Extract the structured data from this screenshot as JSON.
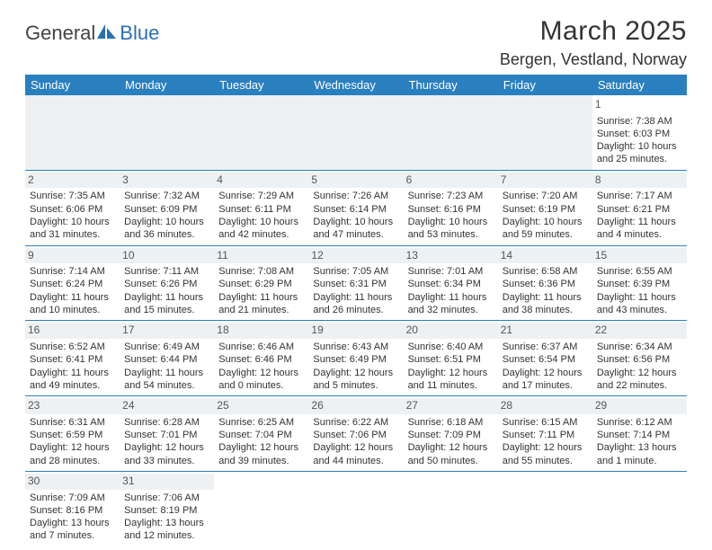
{
  "logo": {
    "part1": "General",
    "part2": "Blue"
  },
  "title": "March 2025",
  "location": "Bergen, Vestland, Norway",
  "dayHeaders": [
    "Sunday",
    "Monday",
    "Tuesday",
    "Wednesday",
    "Thursday",
    "Friday",
    "Saturday"
  ],
  "colors": {
    "headerBg": "#2a7fbf",
    "headerText": "#ffffff",
    "dayStripe": "#eef1f3",
    "border": "#2a7fbf",
    "logoBlue": "#2a6fb5",
    "text": "#333333"
  },
  "weeks": [
    [
      null,
      null,
      null,
      null,
      null,
      null,
      {
        "d": "1",
        "sr": "Sunrise: 7:38 AM",
        "ss": "Sunset: 6:03 PM",
        "dl": "Daylight: 10 hours and 25 minutes."
      }
    ],
    [
      {
        "d": "2",
        "sr": "Sunrise: 7:35 AM",
        "ss": "Sunset: 6:06 PM",
        "dl": "Daylight: 10 hours and 31 minutes."
      },
      {
        "d": "3",
        "sr": "Sunrise: 7:32 AM",
        "ss": "Sunset: 6:09 PM",
        "dl": "Daylight: 10 hours and 36 minutes."
      },
      {
        "d": "4",
        "sr": "Sunrise: 7:29 AM",
        "ss": "Sunset: 6:11 PM",
        "dl": "Daylight: 10 hours and 42 minutes."
      },
      {
        "d": "5",
        "sr": "Sunrise: 7:26 AM",
        "ss": "Sunset: 6:14 PM",
        "dl": "Daylight: 10 hours and 47 minutes."
      },
      {
        "d": "6",
        "sr": "Sunrise: 7:23 AM",
        "ss": "Sunset: 6:16 PM",
        "dl": "Daylight: 10 hours and 53 minutes."
      },
      {
        "d": "7",
        "sr": "Sunrise: 7:20 AM",
        "ss": "Sunset: 6:19 PM",
        "dl": "Daylight: 10 hours and 59 minutes."
      },
      {
        "d": "8",
        "sr": "Sunrise: 7:17 AM",
        "ss": "Sunset: 6:21 PM",
        "dl": "Daylight: 11 hours and 4 minutes."
      }
    ],
    [
      {
        "d": "9",
        "sr": "Sunrise: 7:14 AM",
        "ss": "Sunset: 6:24 PM",
        "dl": "Daylight: 11 hours and 10 minutes."
      },
      {
        "d": "10",
        "sr": "Sunrise: 7:11 AM",
        "ss": "Sunset: 6:26 PM",
        "dl": "Daylight: 11 hours and 15 minutes."
      },
      {
        "d": "11",
        "sr": "Sunrise: 7:08 AM",
        "ss": "Sunset: 6:29 PM",
        "dl": "Daylight: 11 hours and 21 minutes."
      },
      {
        "d": "12",
        "sr": "Sunrise: 7:05 AM",
        "ss": "Sunset: 6:31 PM",
        "dl": "Daylight: 11 hours and 26 minutes."
      },
      {
        "d": "13",
        "sr": "Sunrise: 7:01 AM",
        "ss": "Sunset: 6:34 PM",
        "dl": "Daylight: 11 hours and 32 minutes."
      },
      {
        "d": "14",
        "sr": "Sunrise: 6:58 AM",
        "ss": "Sunset: 6:36 PM",
        "dl": "Daylight: 11 hours and 38 minutes."
      },
      {
        "d": "15",
        "sr": "Sunrise: 6:55 AM",
        "ss": "Sunset: 6:39 PM",
        "dl": "Daylight: 11 hours and 43 minutes."
      }
    ],
    [
      {
        "d": "16",
        "sr": "Sunrise: 6:52 AM",
        "ss": "Sunset: 6:41 PM",
        "dl": "Daylight: 11 hours and 49 minutes."
      },
      {
        "d": "17",
        "sr": "Sunrise: 6:49 AM",
        "ss": "Sunset: 6:44 PM",
        "dl": "Daylight: 11 hours and 54 minutes."
      },
      {
        "d": "18",
        "sr": "Sunrise: 6:46 AM",
        "ss": "Sunset: 6:46 PM",
        "dl": "Daylight: 12 hours and 0 minutes."
      },
      {
        "d": "19",
        "sr": "Sunrise: 6:43 AM",
        "ss": "Sunset: 6:49 PM",
        "dl": "Daylight: 12 hours and 5 minutes."
      },
      {
        "d": "20",
        "sr": "Sunrise: 6:40 AM",
        "ss": "Sunset: 6:51 PM",
        "dl": "Daylight: 12 hours and 11 minutes."
      },
      {
        "d": "21",
        "sr": "Sunrise: 6:37 AM",
        "ss": "Sunset: 6:54 PM",
        "dl": "Daylight: 12 hours and 17 minutes."
      },
      {
        "d": "22",
        "sr": "Sunrise: 6:34 AM",
        "ss": "Sunset: 6:56 PM",
        "dl": "Daylight: 12 hours and 22 minutes."
      }
    ],
    [
      {
        "d": "23",
        "sr": "Sunrise: 6:31 AM",
        "ss": "Sunset: 6:59 PM",
        "dl": "Daylight: 12 hours and 28 minutes."
      },
      {
        "d": "24",
        "sr": "Sunrise: 6:28 AM",
        "ss": "Sunset: 7:01 PM",
        "dl": "Daylight: 12 hours and 33 minutes."
      },
      {
        "d": "25",
        "sr": "Sunrise: 6:25 AM",
        "ss": "Sunset: 7:04 PM",
        "dl": "Daylight: 12 hours and 39 minutes."
      },
      {
        "d": "26",
        "sr": "Sunrise: 6:22 AM",
        "ss": "Sunset: 7:06 PM",
        "dl": "Daylight: 12 hours and 44 minutes."
      },
      {
        "d": "27",
        "sr": "Sunrise: 6:18 AM",
        "ss": "Sunset: 7:09 PM",
        "dl": "Daylight: 12 hours and 50 minutes."
      },
      {
        "d": "28",
        "sr": "Sunrise: 6:15 AM",
        "ss": "Sunset: 7:11 PM",
        "dl": "Daylight: 12 hours and 55 minutes."
      },
      {
        "d": "29",
        "sr": "Sunrise: 6:12 AM",
        "ss": "Sunset: 7:14 PM",
        "dl": "Daylight: 13 hours and 1 minute."
      }
    ],
    [
      {
        "d": "30",
        "sr": "Sunrise: 7:09 AM",
        "ss": "Sunset: 8:16 PM",
        "dl": "Daylight: 13 hours and 7 minutes."
      },
      {
        "d": "31",
        "sr": "Sunrise: 7:06 AM",
        "ss": "Sunset: 8:19 PM",
        "dl": "Daylight: 13 hours and 12 minutes."
      },
      null,
      null,
      null,
      null,
      null
    ]
  ]
}
